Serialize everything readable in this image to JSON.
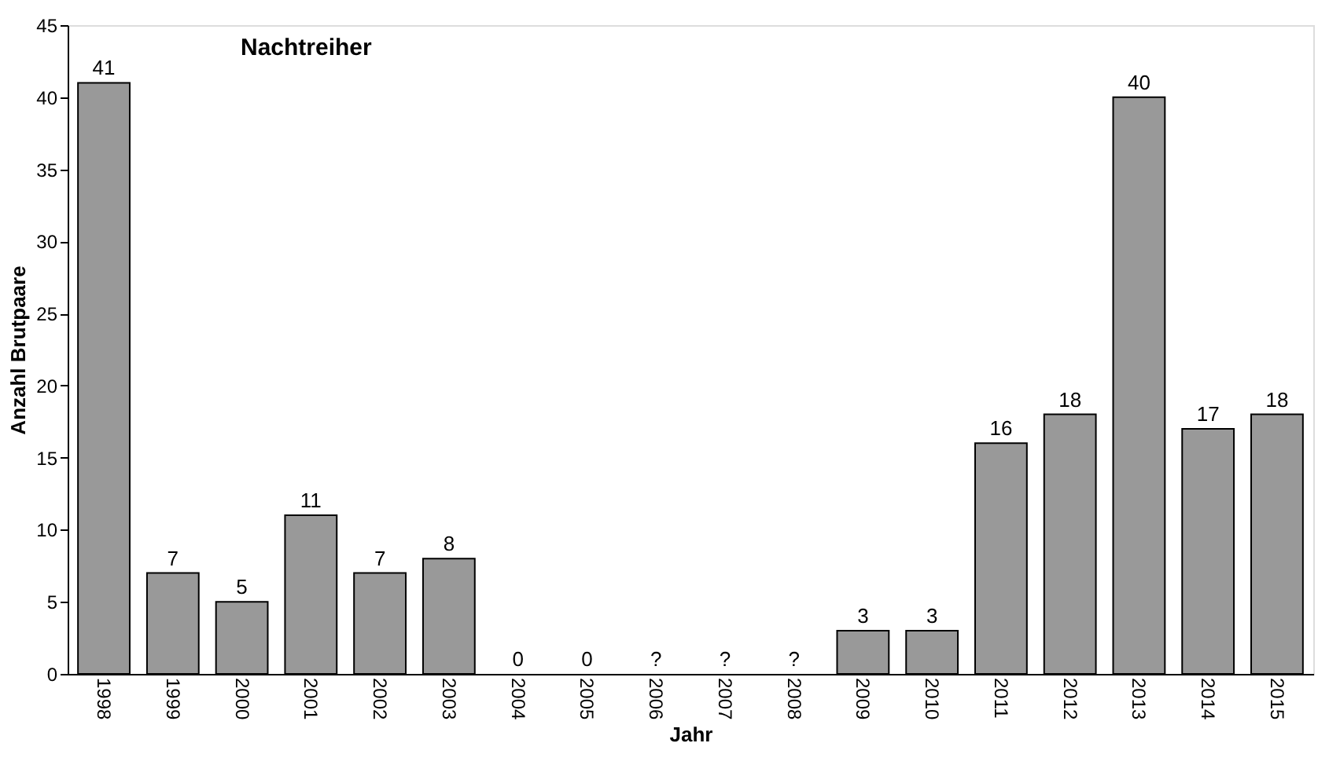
{
  "chart_data": {
    "type": "bar",
    "title": "Nachtreiher",
    "xlabel": "Jahr",
    "ylabel": "Anzahl Brutpaare",
    "categories": [
      "1998",
      "1999",
      "2000",
      "2001",
      "2002",
      "2003",
      "2004",
      "2005",
      "2006",
      "2007",
      "2008",
      "2009",
      "2010",
      "2011",
      "2012",
      "2013",
      "2014",
      "2015"
    ],
    "values": [
      41,
      7,
      5,
      11,
      7,
      8,
      0,
      0,
      null,
      null,
      null,
      3,
      3,
      16,
      18,
      40,
      17,
      18
    ],
    "value_labels": [
      "41",
      "7",
      "5",
      "11",
      "7",
      "8",
      "0",
      "0",
      "?",
      "?",
      "?",
      "3",
      "3",
      "16",
      "18",
      "40",
      "17",
      "18"
    ],
    "color": "#999999",
    "ylim": [
      0,
      45
    ],
    "yticks": [
      0,
      5,
      10,
      15,
      20,
      25,
      30,
      35,
      40,
      45
    ],
    "grid": false
  }
}
